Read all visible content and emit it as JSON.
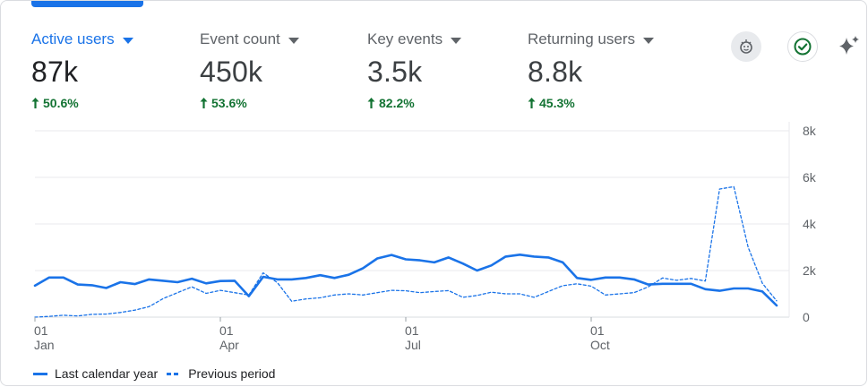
{
  "metrics": [
    {
      "label": "Active users",
      "value": "87k",
      "change": "50.6%"
    },
    {
      "label": "Event count",
      "value": "450k",
      "change": "53.6%"
    },
    {
      "label": "Key events",
      "value": "3.5k",
      "change": "82.2%"
    },
    {
      "label": "Returning users",
      "value": "8.8k",
      "change": "45.3%"
    }
  ],
  "icons": {
    "insights": "insights-badge-icon",
    "check": "check-circle-icon",
    "sparkle": "sparkle-icon"
  },
  "colors": {
    "accent": "#1a73e8",
    "positive": "#137333",
    "text": "#202124",
    "muted": "#5f6368",
    "grid": "#e8eaed"
  },
  "chart_data": {
    "type": "line",
    "ylim": [
      0,
      8000
    ],
    "y_ticks": [
      {
        "value": 0,
        "label": "0"
      },
      {
        "value": 2000,
        "label": "2k"
      },
      {
        "value": 4000,
        "label": "4k"
      },
      {
        "value": 6000,
        "label": "6k"
      },
      {
        "value": 8000,
        "label": "8k"
      }
    ],
    "x_ticks": [
      {
        "week": 0,
        "day": "01",
        "month": "Jan"
      },
      {
        "week": 13,
        "day": "01",
        "month": "Apr"
      },
      {
        "week": 26,
        "day": "01",
        "month": "Jul"
      },
      {
        "week": 39,
        "day": "01",
        "month": "Oct"
      }
    ],
    "x_range": [
      0,
      52
    ],
    "series": [
      {
        "name": "Last calendar year",
        "style": "solid",
        "values": [
          1350,
          1700,
          1700,
          1400,
          1370,
          1250,
          1500,
          1420,
          1620,
          1560,
          1500,
          1650,
          1450,
          1550,
          1560,
          900,
          1730,
          1620,
          1620,
          1680,
          1800,
          1680,
          1820,
          2100,
          2520,
          2670,
          2480,
          2440,
          2350,
          2560,
          2300,
          2000,
          2220,
          2600,
          2680,
          2600,
          2560,
          2350,
          1680,
          1600,
          1700,
          1700,
          1620,
          1400,
          1430,
          1430,
          1430,
          1200,
          1130,
          1230,
          1230,
          1100,
          500
        ]
      },
      {
        "name": "Previous period",
        "style": "dashed",
        "values": [
          0,
          30,
          80,
          50,
          120,
          130,
          200,
          300,
          450,
          800,
          1050,
          1300,
          1020,
          1150,
          1050,
          950,
          1900,
          1480,
          680,
          780,
          830,
          950,
          1000,
          950,
          1050,
          1150,
          1130,
          1050,
          1100,
          1140,
          850,
          930,
          1070,
          1000,
          1000,
          850,
          1100,
          1350,
          1430,
          1330,
          950,
          1000,
          1050,
          1300,
          1680,
          1580,
          1660,
          1550,
          5500,
          5600,
          3000,
          1450,
          700
        ]
      }
    ],
    "legend": [
      "Last calendar year",
      "Previous period"
    ],
    "legend_position": "bottom-left",
    "grid": true
  }
}
